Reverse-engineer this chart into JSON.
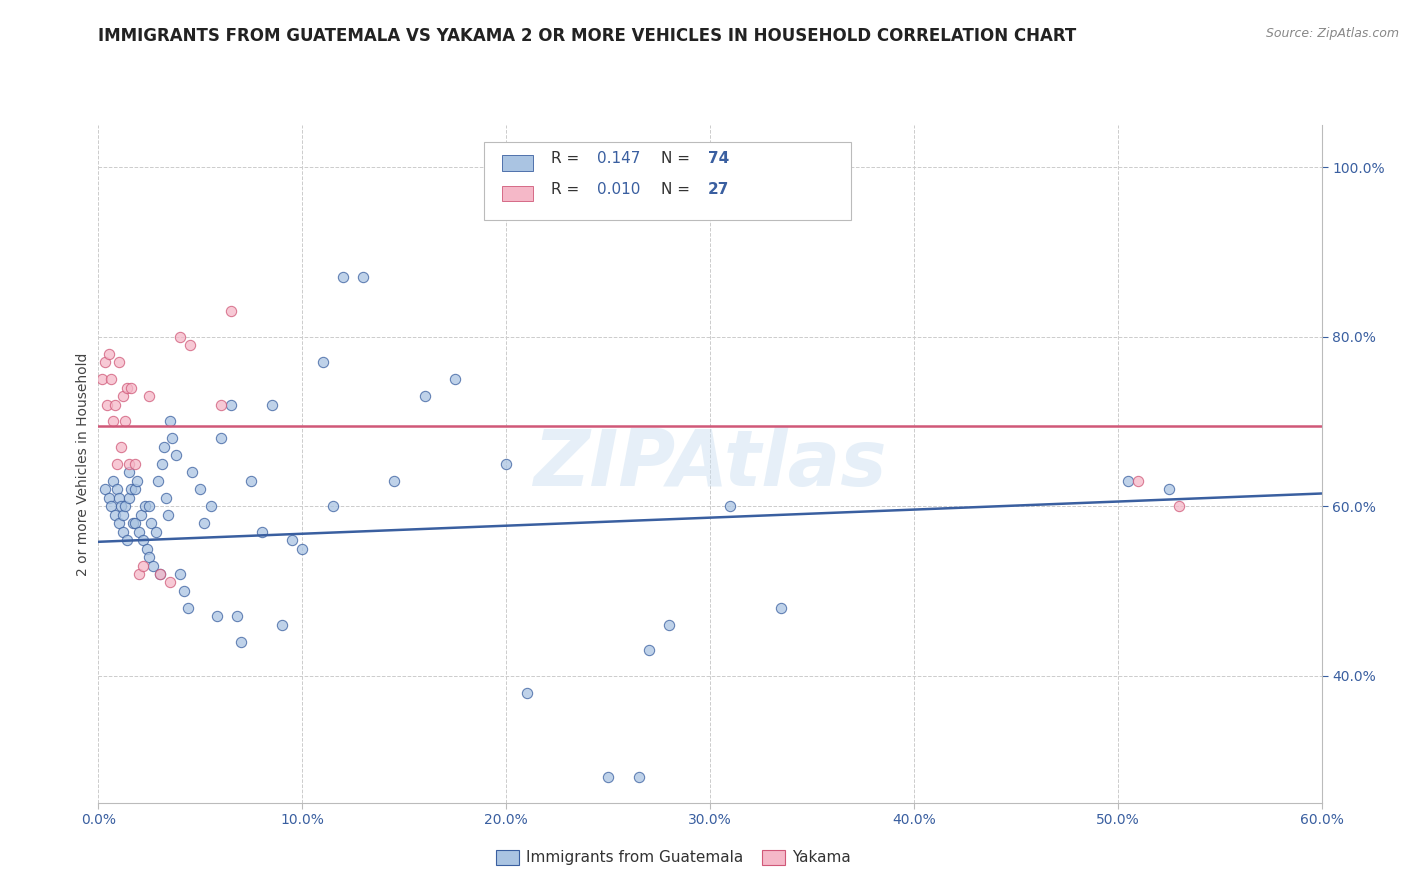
{
  "title": "IMMIGRANTS FROM GUATEMALA VS YAKAMA 2 OR MORE VEHICLES IN HOUSEHOLD CORRELATION CHART",
  "source": "Source: ZipAtlas.com",
  "ylabel_text": "2 or more Vehicles in Household",
  "watermark": "ZIPAtlas",
  "legend_blue_r_val": "0.147",
  "legend_blue_n_val": "74",
  "legend_pink_r_val": "0.010",
  "legend_pink_n_val": "27",
  "legend_label_blue": "Immigrants from Guatemala",
  "legend_label_pink": "Yakama",
  "xlim": [
    0.0,
    0.6
  ],
  "ylim": [
    0.25,
    1.05
  ],
  "xticks": [
    0.0,
    0.1,
    0.2,
    0.3,
    0.4,
    0.5,
    0.6
  ],
  "xtick_labels": [
    "0.0%",
    "10.0%",
    "20.0%",
    "30.0%",
    "40.0%",
    "50.0%",
    "60.0%"
  ],
  "ytick_positions_right": [
    0.4,
    0.6,
    0.8,
    1.0
  ],
  "ytick_labels_right": [
    "40.0%",
    "60.0%",
    "80.0%",
    "100.0%"
  ],
  "blue_scatter_x": [
    0.003,
    0.005,
    0.006,
    0.007,
    0.008,
    0.009,
    0.01,
    0.01,
    0.011,
    0.012,
    0.012,
    0.013,
    0.014,
    0.015,
    0.015,
    0.016,
    0.017,
    0.018,
    0.018,
    0.019,
    0.02,
    0.021,
    0.022,
    0.023,
    0.024,
    0.025,
    0.025,
    0.026,
    0.027,
    0.028,
    0.029,
    0.03,
    0.031,
    0.032,
    0.033,
    0.034,
    0.035,
    0.036,
    0.038,
    0.04,
    0.042,
    0.044,
    0.046,
    0.05,
    0.052,
    0.055,
    0.058,
    0.06,
    0.065,
    0.068,
    0.07,
    0.075,
    0.08,
    0.085,
    0.09,
    0.095,
    0.1,
    0.11,
    0.115,
    0.12,
    0.13,
    0.145,
    0.16,
    0.175,
    0.2,
    0.21,
    0.25,
    0.265,
    0.28,
    0.31,
    0.335,
    0.27,
    0.505,
    0.525
  ],
  "blue_scatter_y": [
    0.62,
    0.61,
    0.6,
    0.63,
    0.59,
    0.62,
    0.61,
    0.58,
    0.6,
    0.59,
    0.57,
    0.6,
    0.56,
    0.61,
    0.64,
    0.62,
    0.58,
    0.62,
    0.58,
    0.63,
    0.57,
    0.59,
    0.56,
    0.6,
    0.55,
    0.6,
    0.54,
    0.58,
    0.53,
    0.57,
    0.63,
    0.52,
    0.65,
    0.67,
    0.61,
    0.59,
    0.7,
    0.68,
    0.66,
    0.52,
    0.5,
    0.48,
    0.64,
    0.62,
    0.58,
    0.6,
    0.47,
    0.68,
    0.72,
    0.47,
    0.44,
    0.63,
    0.57,
    0.72,
    0.46,
    0.56,
    0.55,
    0.77,
    0.6,
    0.87,
    0.87,
    0.63,
    0.73,
    0.75,
    0.65,
    0.38,
    0.28,
    0.28,
    0.46,
    0.6,
    0.48,
    0.43,
    0.63,
    0.62
  ],
  "pink_scatter_x": [
    0.002,
    0.003,
    0.004,
    0.005,
    0.006,
    0.007,
    0.008,
    0.009,
    0.01,
    0.011,
    0.012,
    0.013,
    0.014,
    0.015,
    0.016,
    0.018,
    0.02,
    0.022,
    0.025,
    0.03,
    0.035,
    0.04,
    0.045,
    0.06,
    0.065,
    0.51,
    0.53
  ],
  "pink_scatter_y": [
    0.75,
    0.77,
    0.72,
    0.78,
    0.75,
    0.7,
    0.72,
    0.65,
    0.77,
    0.67,
    0.73,
    0.7,
    0.74,
    0.65,
    0.74,
    0.65,
    0.52,
    0.53,
    0.73,
    0.52,
    0.51,
    0.8,
    0.79,
    0.72,
    0.83,
    0.63,
    0.6
  ],
  "blue_line_y_intercept": 0.558,
  "blue_line_slope": 0.095,
  "pink_line_y": 0.695,
  "blue_color": "#aac4e2",
  "pink_color": "#f5b8c8",
  "blue_line_color": "#3a5fa0",
  "pink_line_color": "#d05878",
  "title_fontsize": 12,
  "axis_label_fontsize": 10,
  "tick_fontsize": 10,
  "scatter_size": 55,
  "scatter_alpha": 0.75,
  "background_color": "#ffffff",
  "grid_color": "#cccccc"
}
